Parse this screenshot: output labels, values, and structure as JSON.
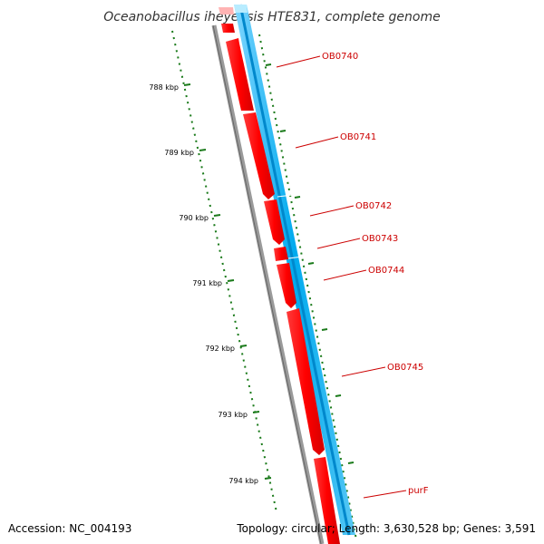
{
  "title": "Oceanobacillus iheyensis HTE831, complete genome",
  "accession": "Accession: NC_004193",
  "summary": "Topology: circular; Length: 3,630,528 bp; Genes: 3,591",
  "colors": {
    "backbone": "#808080",
    "forward_genes": "#ff0000",
    "reverse_genes": "#00aaee",
    "ticks": "#1a7a1a",
    "labels": "#cc0000"
  },
  "scale_labels": [
    "788 kbp",
    "789 kbp",
    "790 kbp",
    "791 kbp",
    "792 kbp",
    "793 kbp",
    "794 kbp"
  ],
  "genes": [
    "OB0740",
    "OB0741",
    "OB0742",
    "OB0743",
    "OB0744",
    "OB0745",
    "purF"
  ]
}
